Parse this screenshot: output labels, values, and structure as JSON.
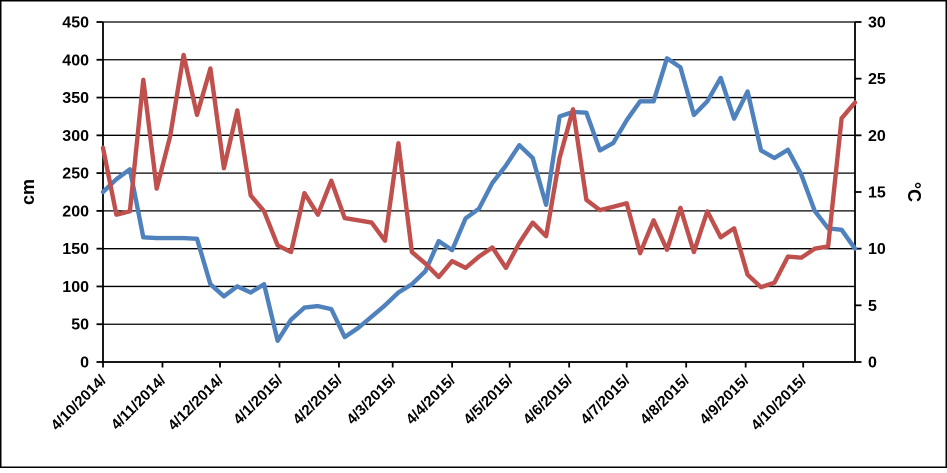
{
  "figure": {
    "background": "#ffffff",
    "border_color": "#000000",
    "plot_background": "#ffffff",
    "gridline_color": "#000000"
  },
  "chart_data": {
    "type": "line",
    "title": "",
    "legend": "none",
    "grid": true,
    "sample_interval_days": 7,
    "x_axis": {
      "date_format": "d/m/yyyy/",
      "span_days": 392,
      "ticks": [
        {
          "label": "4/10/2014/",
          "day": 0
        },
        {
          "label": "4/11/2014/",
          "day": 31
        },
        {
          "label": "4/12/2014/",
          "day": 61
        },
        {
          "label": "4/1/2015/",
          "day": 92
        },
        {
          "label": "4/2/2015/",
          "day": 123
        },
        {
          "label": "4/3/2015/",
          "day": 151
        },
        {
          "label": "4/4/2015/",
          "day": 182
        },
        {
          "label": "4/5/2015/",
          "day": 212
        },
        {
          "label": "4/6/2015/",
          "day": 243
        },
        {
          "label": "4/7/2015/",
          "day": 273
        },
        {
          "label": "4/8/2015/",
          "day": 304
        },
        {
          "label": "4/9/2015/",
          "day": 335
        },
        {
          "label": "4/10/2015/",
          "day": 365
        }
      ]
    },
    "left_axis": {
      "title": "cm",
      "min": 0,
      "max": 450,
      "step": 50,
      "tick_labels": [
        "450",
        "400",
        "350",
        "300",
        "250",
        "200",
        "150",
        "100",
        "50",
        "0"
      ]
    },
    "right_axis": {
      "title": "°C",
      "min": 0,
      "max": 30,
      "step": 5,
      "tick_labels": [
        "30",
        "25",
        "20",
        "15",
        "10",
        "5",
        "0"
      ]
    },
    "series": [
      {
        "name": "cm",
        "axis": "left",
        "color": "#4f81bd",
        "values": [
          225,
          242,
          255,
          165,
          164,
          164,
          164,
          163,
          103,
          87,
          100,
          92,
          103,
          28,
          56,
          72,
          74,
          70,
          33,
          45,
          60,
          75,
          92,
          103,
          120,
          160,
          148,
          190,
          203,
          237,
          260,
          287,
          270,
          208,
          325,
          331,
          330,
          280,
          290,
          320,
          345,
          345,
          402,
          390,
          327,
          345,
          376,
          322,
          358,
          280,
          270,
          281,
          248,
          200,
          177,
          175,
          150
        ]
      },
      {
        "name": "°C",
        "axis": "right",
        "color": "#c0504d",
        "values": [
          18.9,
          13,
          13.3,
          24.9,
          15.3,
          19.9,
          27.1,
          21.8,
          25.9,
          17.1,
          22.2,
          14.7,
          13.3,
          10.3,
          9.7,
          14.9,
          13,
          16,
          12.7,
          12.5,
          12.3,
          10.7,
          19.3,
          9.7,
          8.7,
          7.5,
          8.9,
          8.3,
          9.3,
          10.1,
          8.3,
          10.5,
          12.3,
          11.1,
          18,
          22.3,
          14.3,
          13.4,
          13.7,
          14,
          9.6,
          12.5,
          9.9,
          13.6,
          9.7,
          13.3,
          11,
          11.8,
          7.7,
          6.6,
          7,
          9.3,
          9.2,
          10,
          10.2,
          21.5,
          22.9
        ]
      }
    ]
  }
}
